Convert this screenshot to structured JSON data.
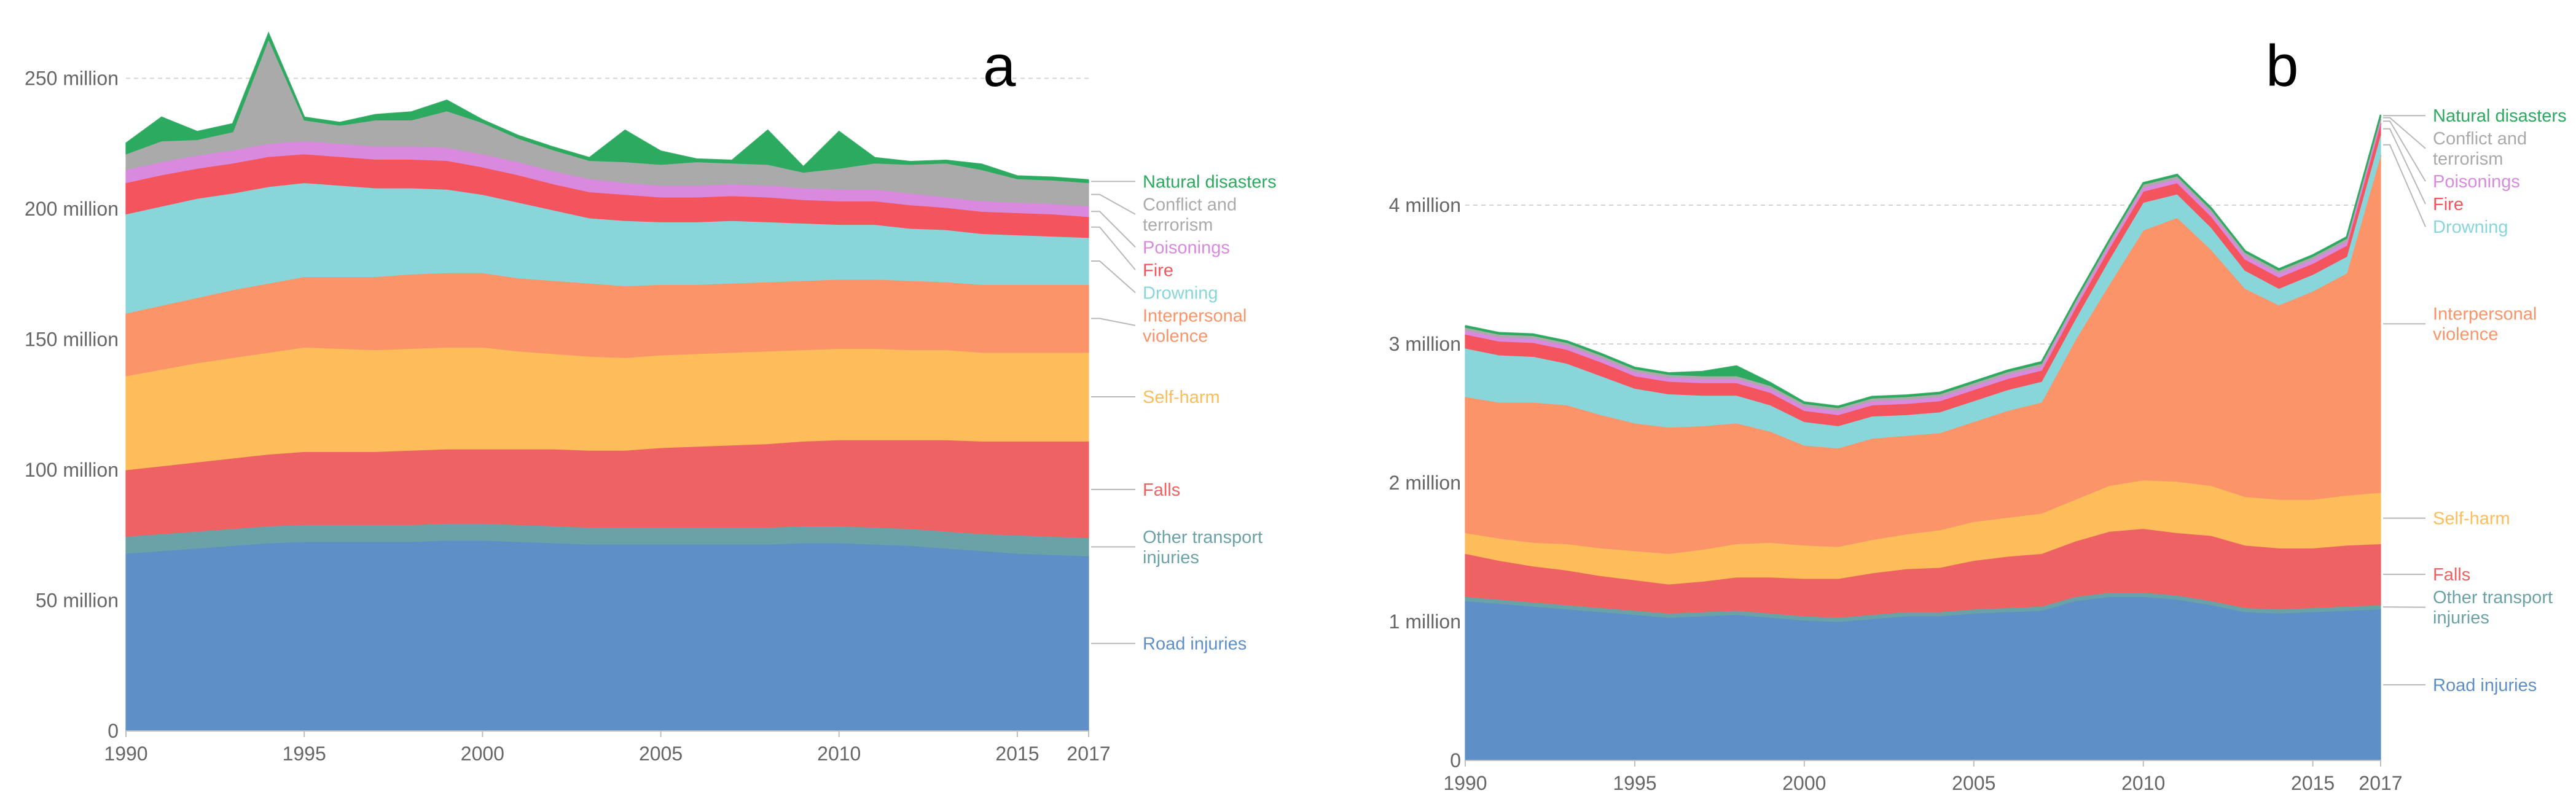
{
  "chart_data": [
    {
      "type": "area",
      "stacked": true,
      "panel_label": "a",
      "x": [
        1990,
        1991,
        1992,
        1993,
        1994,
        1995,
        1996,
        1997,
        1998,
        1999,
        2000,
        2001,
        2002,
        2003,
        2004,
        2005,
        2006,
        2007,
        2008,
        2009,
        2010,
        2011,
        2012,
        2013,
        2014,
        2015,
        2016,
        2017
      ],
      "xticks": [
        1990,
        1995,
        2000,
        2005,
        2010,
        2015,
        2017
      ],
      "xtick_labels": [
        "1990",
        "1995",
        "2000",
        "2005",
        "2010",
        "2015",
        "2017"
      ],
      "ylim": [
        0,
        260000000
      ],
      "yticks": [
        0,
        50000000,
        100000000,
        150000000,
        200000000,
        250000000
      ],
      "ytick_labels": [
        "0",
        "50 million",
        "100 million",
        "150 million",
        "200 million",
        "250 million"
      ],
      "grid": true,
      "series": [
        {
          "name": "Road injuries",
          "label": [
            "Road injuries"
          ],
          "color": "#5E8FC6",
          "values": [
            68,
            69,
            70,
            71,
            72,
            72.5,
            72.5,
            72.5,
            72.5,
            73,
            73,
            72.5,
            72,
            71.5,
            71.5,
            71.5,
            71.5,
            71.5,
            71.5,
            72,
            72,
            71.5,
            71,
            70,
            69,
            68,
            67.5,
            67
          ]
        },
        {
          "name": "Other transport injuries",
          "label": [
            "Other transport",
            "injuries"
          ],
          "color": "#6BA2A8",
          "values": [
            6.5,
            6.5,
            6.5,
            6.5,
            6.5,
            6.5,
            6.5,
            6.5,
            6.5,
            6.5,
            6.5,
            6.5,
            6.5,
            6.5,
            6.5,
            6.5,
            6.5,
            6.5,
            6.5,
            6.5,
            6.5,
            6.5,
            6.5,
            6.5,
            6.5,
            7,
            7,
            7
          ]
        },
        {
          "name": "Falls",
          "label": [
            "Falls"
          ],
          "color": "#EE6264",
          "values": [
            25.5,
            26,
            26.5,
            27,
            27.5,
            28,
            28,
            28,
            28.5,
            28.5,
            28.5,
            29,
            29.5,
            29.5,
            29.5,
            30.5,
            31,
            31.5,
            32,
            32.5,
            33,
            33.5,
            34,
            35,
            35.5,
            36,
            36.5,
            37
          ]
        },
        {
          "name": "Self-harm",
          "label": [
            "Self-harm"
          ],
          "color": "#FEBD5B",
          "values": [
            36,
            37,
            38,
            38.5,
            39,
            40,
            39.5,
            39,
            39,
            39,
            39,
            37.5,
            36.5,
            36,
            35.5,
            35.5,
            35.5,
            35.5,
            35.5,
            35,
            35,
            35,
            34.5,
            34.5,
            34,
            34,
            34,
            34
          ]
        },
        {
          "name": "Interpersonal violence",
          "label": [
            "Interpersonal",
            "violence"
          ],
          "color": "#FB9468",
          "values": [
            24,
            24.5,
            25,
            26,
            26.5,
            27,
            27.5,
            28,
            28.5,
            28.5,
            28.5,
            28,
            28,
            28,
            27.5,
            27,
            26.5,
            26.5,
            26.5,
            26.5,
            26.5,
            26.5,
            26.5,
            26,
            26,
            26,
            26,
            26
          ]
        },
        {
          "name": "Drowning",
          "label": [
            "Drowning"
          ],
          "color": "#88D6DA",
          "values": [
            38,
            38,
            38,
            37,
            37,
            36,
            35,
            34,
            33,
            32,
            30,
            29,
            27,
            25,
            25,
            24,
            24,
            24,
            23,
            22,
            21,
            21,
            20,
            20,
            19.5,
            19,
            18.5,
            18
          ]
        },
        {
          "name": "Fire",
          "label": [
            "Fire"
          ],
          "color": "#F4545D",
          "values": [
            12,
            12,
            11.5,
            11.5,
            11.5,
            11,
            11,
            11,
            11,
            11,
            10.5,
            10.5,
            10,
            10,
            10,
            9.5,
            9.5,
            9.5,
            9.5,
            9,
            9,
            9,
            9,
            8.5,
            8.5,
            8.5,
            8.5,
            8
          ]
        },
        {
          "name": "Poisonings",
          "label": [
            "Poisonings"
          ],
          "color": "#D98ADE",
          "values": [
            5,
            5,
            5,
            5,
            5,
            5,
            5,
            5,
            5,
            5,
            5,
            5,
            5,
            5,
            4.5,
            4.5,
            4.5,
            4.5,
            4.5,
            4.5,
            4.5,
            4.5,
            4.5,
            4,
            4,
            4,
            4,
            4
          ]
        },
        {
          "name": "Conflict and terrorism",
          "label": [
            "Conflict and",
            "terrorism"
          ],
          "color": "#AAAAAA",
          "values": [
            6,
            8,
            6,
            7,
            40,
            8,
            7,
            10,
            10,
            14,
            12,
            9,
            8,
            7,
            8,
            8,
            9,
            8,
            8,
            6,
            8,
            10,
            11,
            13,
            12,
            9,
            9,
            9
          ]
        },
        {
          "name": "Natural disasters",
          "label": [
            "Natural disasters"
          ],
          "color": "#2CAA5F",
          "values": [
            4,
            9,
            3,
            3,
            2,
            1,
            1,
            2,
            3,
            4,
            1,
            1,
            1,
            1,
            12,
            5,
            1,
            1,
            13,
            2,
            14,
            2,
            1,
            1,
            2,
            1,
            1,
            1
          ]
        }
      ],
      "value_scale": 1000000
    },
    {
      "type": "area",
      "stacked": true,
      "panel_label": "b",
      "x": [
        1990,
        1991,
        1992,
        1993,
        1994,
        1995,
        1996,
        1997,
        1998,
        1999,
        2000,
        2001,
        2002,
        2003,
        2004,
        2005,
        2006,
        2007,
        2008,
        2009,
        2010,
        2011,
        2012,
        2013,
        2014,
        2015,
        2016,
        2017
      ],
      "xticks": [
        1990,
        1995,
        2000,
        2005,
        2010,
        2015,
        2017
      ],
      "xtick_labels": [
        "1990",
        "1995",
        "2000",
        "2005",
        "2010",
        "2015",
        "2017"
      ],
      "ylim": [
        0,
        5000000
      ],
      "yticks": [
        0,
        1000000,
        2000000,
        3000000,
        4000000
      ],
      "ytick_labels": [
        "0",
        "1 million",
        "2 million",
        "3 million",
        "4 million"
      ],
      "grid": true,
      "series": [
        {
          "name": "Road injuries",
          "label": [
            "Road injuries"
          ],
          "color": "#5E8FC6",
          "values": [
            1.15,
            1.13,
            1.11,
            1.09,
            1.07,
            1.05,
            1.03,
            1.04,
            1.05,
            1.03,
            1.01,
            1.0,
            1.02,
            1.04,
            1.04,
            1.06,
            1.07,
            1.08,
            1.15,
            1.18,
            1.18,
            1.16,
            1.12,
            1.07,
            1.06,
            1.07,
            1.08,
            1.09
          ]
        },
        {
          "name": "Other transport injuries",
          "label": [
            "Other transport",
            "injuries"
          ],
          "color": "#6BA2A8",
          "values": [
            0.03,
            0.03,
            0.03,
            0.03,
            0.03,
            0.03,
            0.03,
            0.03,
            0.03,
            0.03,
            0.03,
            0.03,
            0.03,
            0.03,
            0.03,
            0.03,
            0.03,
            0.03,
            0.03,
            0.03,
            0.03,
            0.03,
            0.03,
            0.03,
            0.03,
            0.03,
            0.03,
            0.03
          ]
        },
        {
          "name": "Falls",
          "label": [
            "Falls"
          ],
          "color": "#EE6264",
          "values": [
            0.31,
            0.28,
            0.26,
            0.25,
            0.23,
            0.22,
            0.21,
            0.22,
            0.24,
            0.26,
            0.27,
            0.28,
            0.3,
            0.31,
            0.32,
            0.35,
            0.37,
            0.38,
            0.4,
            0.44,
            0.46,
            0.45,
            0.47,
            0.45,
            0.44,
            0.43,
            0.44,
            0.44
          ]
        },
        {
          "name": "Self-harm",
          "label": [
            "Self-harm"
          ],
          "color": "#FEBD5B",
          "values": [
            0.15,
            0.16,
            0.17,
            0.19,
            0.2,
            0.21,
            0.22,
            0.23,
            0.24,
            0.25,
            0.24,
            0.23,
            0.24,
            0.25,
            0.27,
            0.28,
            0.28,
            0.29,
            0.3,
            0.33,
            0.35,
            0.37,
            0.36,
            0.35,
            0.35,
            0.35,
            0.36,
            0.37
          ]
        },
        {
          "name": "Interpersonal violence",
          "label": [
            "Interpersonal",
            "violence"
          ],
          "color": "#FB9468",
          "values": [
            0.98,
            0.98,
            1.01,
            1.0,
            0.96,
            0.92,
            0.91,
            0.89,
            0.87,
            0.8,
            0.72,
            0.71,
            0.73,
            0.71,
            0.7,
            0.72,
            0.77,
            0.8,
            1.15,
            1.45,
            1.8,
            1.9,
            1.7,
            1.5,
            1.4,
            1.5,
            1.6,
            2.43
          ]
        },
        {
          "name": "Drowning",
          "label": [
            "Drowning"
          ],
          "color": "#88D6DA",
          "values": [
            0.35,
            0.34,
            0.33,
            0.3,
            0.28,
            0.25,
            0.24,
            0.22,
            0.2,
            0.19,
            0.17,
            0.16,
            0.16,
            0.15,
            0.15,
            0.15,
            0.15,
            0.15,
            0.15,
            0.18,
            0.2,
            0.17,
            0.16,
            0.13,
            0.12,
            0.12,
            0.12,
            0.15
          ]
        },
        {
          "name": "Fire",
          "label": [
            "Fire"
          ],
          "color": "#F4545D",
          "values": [
            0.1,
            0.1,
            0.1,
            0.1,
            0.1,
            0.09,
            0.09,
            0.09,
            0.09,
            0.09,
            0.08,
            0.08,
            0.08,
            0.08,
            0.08,
            0.08,
            0.08,
            0.08,
            0.08,
            0.08,
            0.08,
            0.08,
            0.08,
            0.08,
            0.08,
            0.08,
            0.08,
            0.08
          ]
        },
        {
          "name": "Poisonings",
          "label": [
            "Poisonings"
          ],
          "color": "#D98ADE",
          "values": [
            0.03,
            0.03,
            0.03,
            0.03,
            0.03,
            0.03,
            0.03,
            0.03,
            0.03,
            0.03,
            0.03,
            0.03,
            0.03,
            0.03,
            0.03,
            0.03,
            0.03,
            0.03,
            0.03,
            0.03,
            0.03,
            0.03,
            0.03,
            0.03,
            0.03,
            0.03,
            0.03,
            0.03
          ]
        },
        {
          "name": "Conflict and terrorism",
          "label": [
            "Conflict and",
            "terrorism"
          ],
          "color": "#AAAAAA",
          "values": [
            0.02,
            0.02,
            0.02,
            0.02,
            0.02,
            0.02,
            0.02,
            0.02,
            0.02,
            0.02,
            0.02,
            0.02,
            0.02,
            0.02,
            0.02,
            0.02,
            0.02,
            0.02,
            0.02,
            0.02,
            0.02,
            0.02,
            0.02,
            0.02,
            0.02,
            0.02,
            0.02,
            0.02
          ]
        },
        {
          "name": "Natural disasters",
          "label": [
            "Natural disasters"
          ],
          "color": "#2CAA5F",
          "values": [
            0.01,
            0.01,
            0.01,
            0.01,
            0.01,
            0.01,
            0.01,
            0.03,
            0.07,
            0.02,
            0.01,
            0.01,
            0.01,
            0.01,
            0.01,
            0.01,
            0.01,
            0.01,
            0.01,
            0.01,
            0.01,
            0.01,
            0.01,
            0.01,
            0.01,
            0.01,
            0.01,
            0.01
          ]
        }
      ],
      "value_scale": 1000000
    }
  ]
}
